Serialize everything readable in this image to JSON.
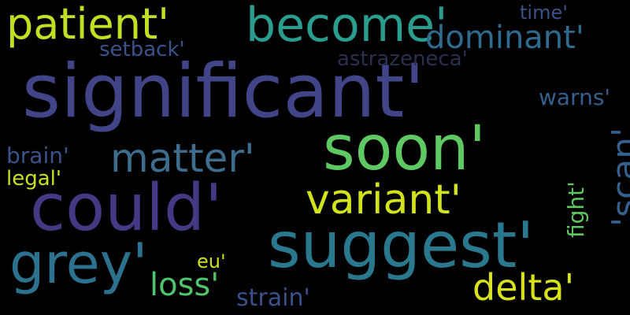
{
  "words": {
    "significant": "significant'",
    "could": "could'",
    "suggest": "suggest'",
    "soon": "soon'",
    "grey": "grey'",
    "become": "become'",
    "patient": "patient'",
    "variant": "variant'",
    "matter": "matter'",
    "delta": "delta'",
    "dominant": "dominant'",
    "loss": "loss'",
    "scan": "'scan'",
    "strain": "strain'",
    "brain": "brain'",
    "legal": "legal'",
    "setback": "setback'",
    "astrazeneca": "astrazeneca'",
    "warns": "warns'",
    "fight": "fight'",
    "eu": "eu'",
    "time": "time'"
  },
  "colors": {
    "background": "#000000"
  }
}
